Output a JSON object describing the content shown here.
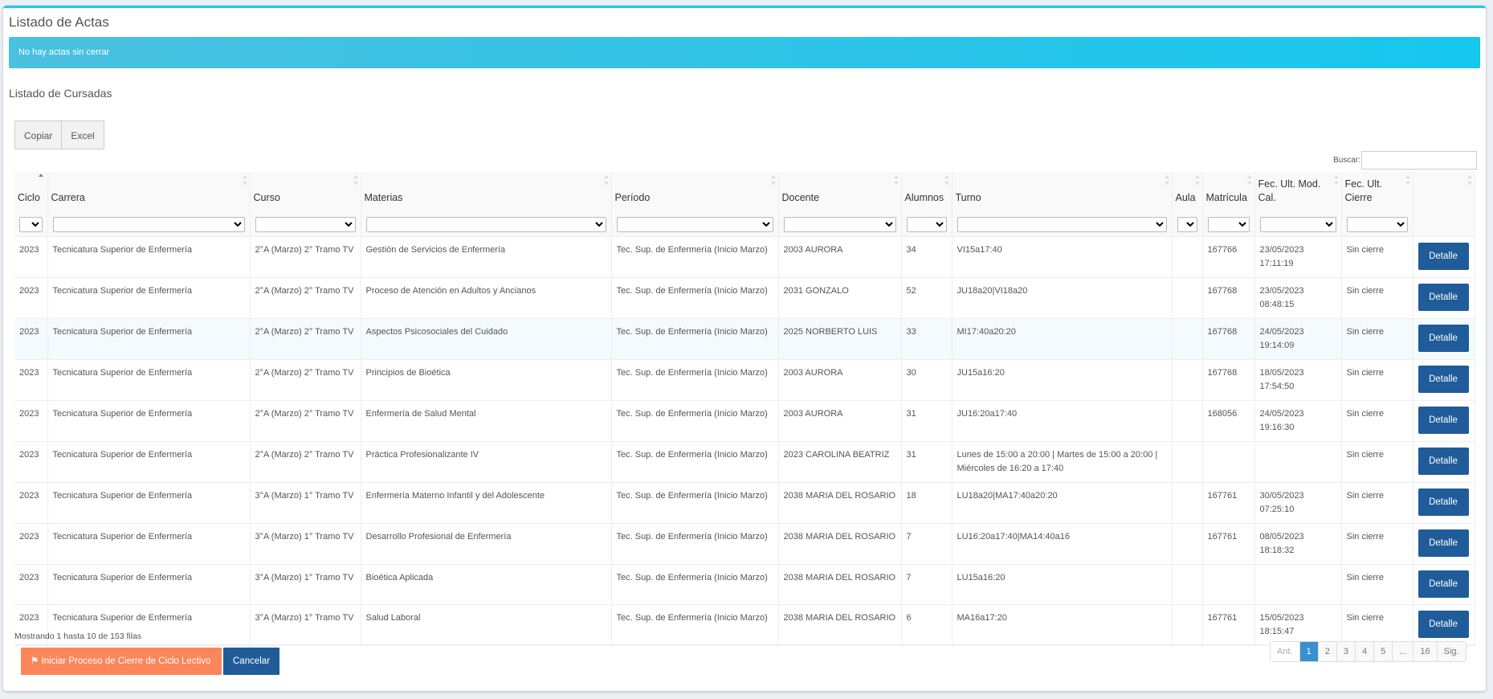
{
  "title": "Listado de Actas",
  "alert": "No hay actas sin cerrar",
  "subtitle": "Listado de Cursadas",
  "buttons": {
    "copy": "Copiar",
    "excel": "Excel"
  },
  "search": {
    "label": "Buscar:",
    "value": ""
  },
  "columns": [
    "Ciclo",
    "Carrera",
    "Curso",
    "Materias",
    "Período",
    "Docente",
    "Alumnos",
    "Turno",
    "Aula",
    "Matrícula",
    "Fec. Ult. Mod. Cal.",
    "Fec. Ult. Cierre",
    ""
  ],
  "sorted_column": "Ciclo",
  "action_label": "Detalle",
  "rows": [
    [
      "2023",
      "Tecnicatura Superior de Enfermería",
      "2°A (Marzo) 2° Tramo TV",
      "Gestión de Servicios de Enfermería",
      "Tec. Sup. de Enfermería (Inicio Marzo)",
      "2003 AURORA",
      "34",
      "VI15a17:40",
      "",
      "167766",
      "23/05/2023 17:11:19",
      "Sin cierre"
    ],
    [
      "2023",
      "Tecnicatura Superior de Enfermería",
      "2°A (Marzo) 2° Tramo TV",
      "Proceso de Atención en Adultos y Ancianos",
      "Tec. Sup. de Enfermería (Inicio Marzo)",
      "2031 GONZALO",
      "52",
      "JU18a20|VI18a20",
      "",
      "167768",
      "23/05/2023 08:48:15",
      "Sin cierre"
    ],
    [
      "2023",
      "Tecnicatura Superior de Enfermería",
      "2°A (Marzo) 2° Tramo TV",
      "Aspectos Psicosociales del Cuidado",
      "Tec. Sup. de Enfermería (Inicio Marzo)",
      "2025 NORBERTO LUIS",
      "33",
      "MI17:40a20:20",
      "",
      "167768",
      "24/05/2023 19:14:09",
      "Sin cierre"
    ],
    [
      "2023",
      "Tecnicatura Superior de Enfermería",
      "2°A (Marzo) 2° Tramo TV",
      "Principios de Bioética",
      "Tec. Sup. de Enfermería (Inicio Marzo)",
      "2003 AURORA",
      "30",
      "JU15a16:20",
      "",
      "167768",
      "18/05/2023 17:54:50",
      "Sin cierre"
    ],
    [
      "2023",
      "Tecnicatura Superior de Enfermería",
      "2°A (Marzo) 2° Tramo TV",
      "Enfermería de Salud Mental",
      "Tec. Sup. de Enfermería (Inicio Marzo)",
      "2003 AURORA",
      "31",
      "JU16:20a17:40",
      "",
      "168056",
      "24/05/2023 19:16:30",
      "Sin cierre"
    ],
    [
      "2023",
      "Tecnicatura Superior de Enfermería",
      "2°A (Marzo) 2° Tramo TV",
      "Práctica Profesionalizante IV",
      "Tec. Sup. de Enfermería (Inicio Marzo)",
      "2023 CAROLINA BEATRIZ",
      "31",
      "Lunes de 15:00 a 20:00 | Martes de 15:00 a 20:00 | Miércoles de 16:20 a 17:40",
      "",
      "",
      "",
      "Sin cierre"
    ],
    [
      "2023",
      "Tecnicatura Superior de Enfermería",
      "3°A (Marzo) 1° Tramo TV",
      "Enfermería Materno Infantil y del Adolescente",
      "Tec. Sup. de Enfermería (Inicio Marzo)",
      "2038 MARIA DEL ROSARIO",
      "18",
      "LU18a20|MA17:40a20:20",
      "",
      "167761",
      "30/05/2023 07:25:10",
      "Sin cierre"
    ],
    [
      "2023",
      "Tecnicatura Superior de Enfermería",
      "3°A (Marzo) 1° Tramo TV",
      "Desarrollo Profesional de Enfermería",
      "Tec. Sup. de Enfermería (Inicio Marzo)",
      "2038 MARIA DEL ROSARIO",
      "7",
      "LU16:20a17:40|MA14:40a16",
      "",
      "167761",
      "08/05/2023 18:18:32",
      "Sin cierre"
    ],
    [
      "2023",
      "Tecnicatura Superior de Enfermería",
      "3°A (Marzo) 1° Tramo TV",
      "Bioética Aplicada",
      "Tec. Sup. de Enfermería (Inicio Marzo)",
      "2038 MARIA DEL ROSARIO",
      "7",
      "LU15a16:20",
      "",
      "",
      "",
      "Sin cierre"
    ],
    [
      "2023",
      "Tecnicatura Superior de Enfermería",
      "3°A (Marzo) 1° Tramo TV",
      "Salud Laboral",
      "Tec. Sup. de Enfermería (Inicio Marzo)",
      "2038 MARIA DEL ROSARIO",
      "6",
      "MA16a17:20",
      "",
      "167761",
      "15/05/2023 18:15:47",
      "Sin cierre"
    ]
  ],
  "highlighted_row": 2,
  "info": "Mostrando 1 hasta 10 de 153 filas",
  "actions": {
    "start": "Iniciar Proceso de Cierre de Ciclo Lectivo",
    "start_icon": "flag-icon",
    "cancel": "Cancelar"
  },
  "pagination": {
    "pages": [
      "Ant.",
      "1",
      "2",
      "3",
      "4",
      "5",
      "...",
      "16",
      "Sig."
    ],
    "current": "1"
  },
  "colors": {
    "accent": "#1ec6ec",
    "primary": "#1f5c99",
    "warning": "#fc855a",
    "page_active": "#3a8fd0"
  }
}
